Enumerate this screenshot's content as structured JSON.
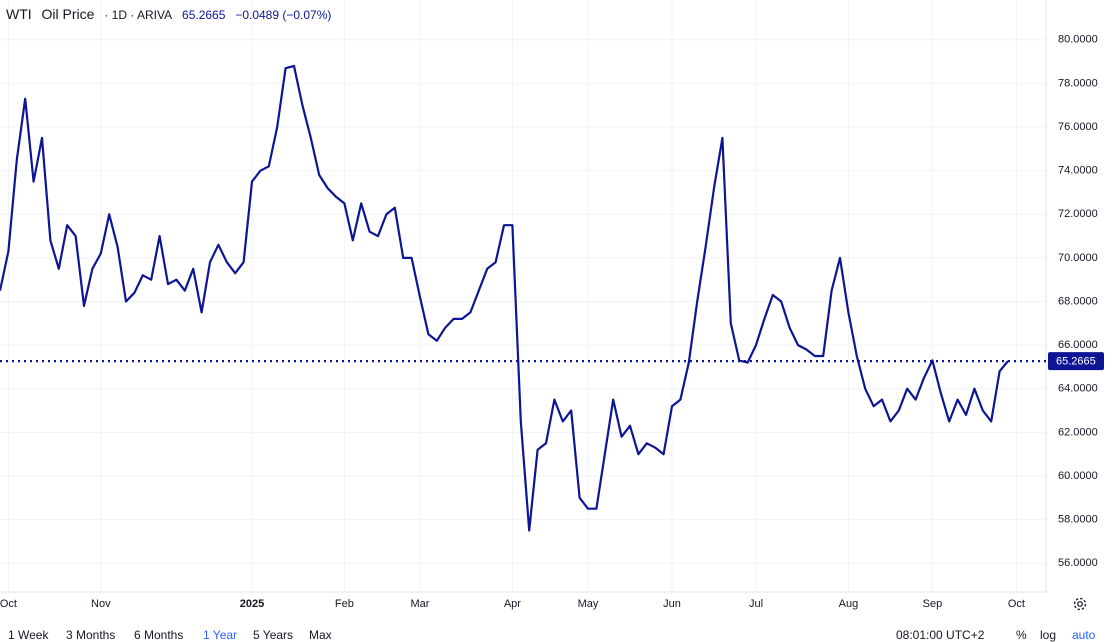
{
  "header": {
    "symbol": "WTI",
    "name": "Oil Price",
    "interval": "· 1D · ARIVA",
    "price": "65.2665",
    "change": "−0.0489 (−0.07%)"
  },
  "chart_data": {
    "type": "line",
    "categories": [
      null,
      "Oct",
      null,
      null,
      null,
      null,
      null,
      null,
      null,
      null,
      null,
      null,
      "Nov",
      null,
      null,
      null,
      null,
      null,
      null,
      null,
      null,
      null,
      null,
      null,
      null,
      null,
      null,
      null,
      null,
      null,
      "2025",
      null,
      null,
      null,
      null,
      null,
      null,
      null,
      null,
      null,
      null,
      "Feb",
      null,
      null,
      null,
      null,
      null,
      null,
      null,
      null,
      "Mar",
      null,
      null,
      null,
      null,
      null,
      null,
      null,
      null,
      null,
      null,
      "Apr",
      null,
      null,
      null,
      null,
      null,
      null,
      null,
      null,
      "May",
      null,
      null,
      null,
      null,
      null,
      null,
      null,
      null,
      null,
      "Jun",
      null,
      null,
      null,
      null,
      null,
      null,
      null,
      null,
      null,
      "Jul",
      null,
      null,
      null,
      null,
      null,
      null,
      null,
      null,
      null,
      null,
      "Aug",
      null,
      null,
      null,
      null,
      null,
      null,
      null,
      null,
      null,
      "Sep",
      null,
      null,
      null,
      null,
      null,
      null,
      null,
      null,
      null,
      "Oct"
    ],
    "series": [
      {
        "name": "WTI",
        "color": "#0d1594",
        "values": [
          68.5,
          70.3,
          74.5,
          77.3,
          73.5,
          75.5,
          70.8,
          69.5,
          71.5,
          71.0,
          67.8,
          69.5,
          70.2,
          72.0,
          70.5,
          68.0,
          68.4,
          69.2,
          69.0,
          71.0,
          68.8,
          69.0,
          68.5,
          69.5,
          67.5,
          69.8,
          70.6,
          69.8,
          69.3,
          69.8,
          73.5,
          74.0,
          74.2,
          76.0,
          78.7,
          78.8,
          77.0,
          75.5,
          73.8,
          73.2,
          72.8,
          72.5,
          70.8,
          72.5,
          71.2,
          71.0,
          72.0,
          72.3,
          70.0,
          70.0,
          68.2,
          66.5,
          66.2,
          66.8,
          67.2,
          67.2,
          67.5,
          68.5,
          69.5,
          69.8,
          71.5,
          71.5,
          62.5,
          57.5,
          61.2,
          61.5,
          63.5,
          62.5,
          63.0,
          59.0,
          58.5,
          58.5,
          61.0,
          63.5,
          61.8,
          62.3,
          61.0,
          61.5,
          61.3,
          61.0,
          63.2,
          63.5,
          65.2,
          68.0,
          70.5,
          73.2,
          75.5,
          67.0,
          65.3,
          65.2,
          66.0,
          67.2,
          68.3,
          68.0,
          66.8,
          66.0,
          65.8,
          65.5,
          65.5,
          68.5,
          70.0,
          67.5,
          65.5,
          64.0,
          63.2,
          63.5,
          62.5,
          63.0,
          64.0,
          63.5,
          64.5,
          65.3,
          63.8,
          62.5,
          63.5,
          62.8,
          64.0,
          63.0,
          62.5,
          64.8,
          65.2665,
          null
        ]
      }
    ],
    "last_price": 65.2665,
    "ylim": [
      55,
      81
    ],
    "yticks": [
      {
        "value": 56,
        "label": "56.0000"
      },
      {
        "value": 58,
        "label": "58.0000"
      },
      {
        "value": 60,
        "label": "60.0000"
      },
      {
        "value": 62,
        "label": "62.0000"
      },
      {
        "value": 64,
        "label": "64.0000"
      },
      {
        "value": 66,
        "label": "66.0000"
      },
      {
        "value": 68,
        "label": "68.0000"
      },
      {
        "value": 70,
        "label": "70.0000"
      },
      {
        "value": 72,
        "label": "72.0000"
      },
      {
        "value": 74,
        "label": "74.0000"
      },
      {
        "value": 76,
        "label": "76.0000"
      },
      {
        "value": 78,
        "label": "78.0000"
      },
      {
        "value": 80,
        "label": "80.0000"
      }
    ],
    "grid": true
  },
  "footer": {
    "ranges": [
      "1 Week",
      "3 Months",
      "6 Months",
      "1 Year",
      "5 Years",
      "Max"
    ],
    "time": "08:01:00 UTC+2",
    "percent": "%",
    "log": "log",
    "auto": "auto"
  }
}
